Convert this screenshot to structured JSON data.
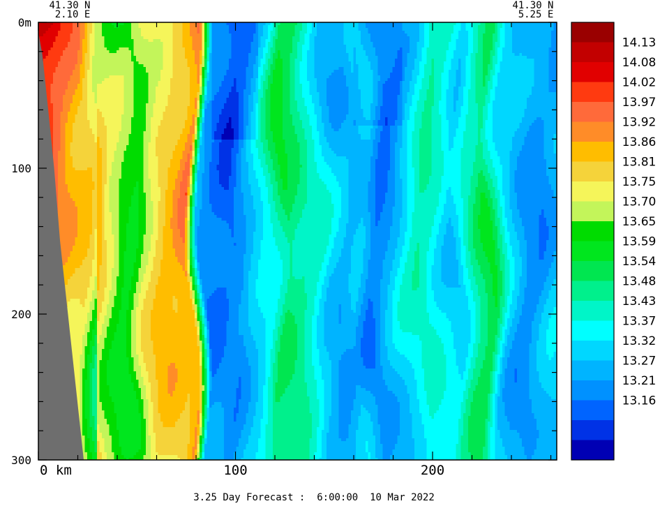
{
  "chart_data": {
    "type": "heatmap",
    "corner_labels": {
      "left": [
        "41.30 N",
        "2.10 E"
      ],
      "right": [
        "41.30 N",
        "5.25 E"
      ]
    },
    "x_axis": {
      "range": [
        0,
        263
      ],
      "unit_label": "0 km",
      "ticks": [
        {
          "value": 0,
          "label": ""
        },
        {
          "value": 100,
          "label": "100"
        },
        {
          "value": 200,
          "label": "200"
        }
      ],
      "minor_step": 20
    },
    "y_axis": {
      "range": [
        0,
        300
      ],
      "inverted": true,
      "ticks": [
        {
          "value": 0,
          "label": "0m"
        },
        {
          "value": 100,
          "label": "100"
        },
        {
          "value": 200,
          "label": "200"
        },
        {
          "value": 300,
          "label": "300"
        }
      ],
      "minor_step": 20
    },
    "footer": "3.25 Day Forecast :  6:00:00  10 Mar 2022",
    "colorbar": {
      "colors": [
        "#9a0000",
        "#c20000",
        "#e10000",
        "#ff3a10",
        "#ff6a3a",
        "#ff8c28",
        "#ffbd00",
        "#f5d33a",
        "#f5f55a",
        "#c3f55a",
        "#00dc00",
        "#00e61e",
        "#00e650",
        "#00f08c",
        "#00f5c8",
        "#00ffff",
        "#00d7ff",
        "#00b4ff",
        "#0091ff",
        "#0064ff",
        "#0032e6",
        "#0000b4"
      ],
      "labels": [
        "14.13",
        "14.08",
        "14.02",
        "13.97",
        "13.92",
        "13.86",
        "13.81",
        "13.75",
        "13.70",
        "13.65",
        "13.59",
        "13.54",
        "13.48",
        "13.43",
        "13.37",
        "13.32",
        "13.27",
        "13.21",
        "13.16"
      ]
    },
    "bathymetry_color": "#6e6e6e",
    "temperature_field": {
      "description_units": "degC",
      "columns": [
        {
          "x": 0,
          "v": 14.09
        },
        {
          "x": 8,
          "v": 14.05
        },
        {
          "x": 16,
          "v": 13.98
        },
        {
          "x": 24,
          "v": 13.93
        },
        {
          "x": 32,
          "v": 13.74
        },
        {
          "x": 40,
          "v": 13.66
        },
        {
          "x": 48,
          "v": 13.62
        },
        {
          "x": 56,
          "v": 13.76
        },
        {
          "x": 64,
          "v": 13.82
        },
        {
          "x": 72,
          "v": 13.84
        },
        {
          "x": 78,
          "v": 13.9
        },
        {
          "x": 84,
          "v": 13.24
        },
        {
          "x": 92,
          "v": 13.22
        },
        {
          "x": 100,
          "v": 13.2
        },
        {
          "x": 108,
          "v": 13.3
        },
        {
          "x": 116,
          "v": 13.4
        },
        {
          "x": 124,
          "v": 13.55
        },
        {
          "x": 132,
          "v": 13.5
        },
        {
          "x": 140,
          "v": 13.42
        },
        {
          "x": 148,
          "v": 13.3
        },
        {
          "x": 156,
          "v": 13.26
        },
        {
          "x": 164,
          "v": 13.33
        },
        {
          "x": 172,
          "v": 13.22
        },
        {
          "x": 180,
          "v": 13.28
        },
        {
          "x": 188,
          "v": 13.36
        },
        {
          "x": 196,
          "v": 13.45
        },
        {
          "x": 204,
          "v": 13.4
        },
        {
          "x": 212,
          "v": 13.33
        },
        {
          "x": 220,
          "v": 13.46
        },
        {
          "x": 228,
          "v": 13.55
        },
        {
          "x": 236,
          "v": 13.35
        },
        {
          "x": 244,
          "v": 13.27
        },
        {
          "x": 252,
          "v": 13.25
        },
        {
          "x": 263,
          "v": 13.3
        }
      ]
    }
  }
}
